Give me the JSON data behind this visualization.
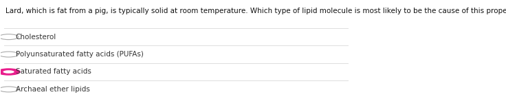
{
  "question": "Lard, which is fat from a pig, is typically solid at room temperature. Which type of lipid molecule is most likely to be the cause of this property of lard?",
  "options": [
    {
      "text": "Cholesterol",
      "selected": false
    },
    {
      "text": "Polyunsaturated fatty acids (PUFAs)",
      "selected": false
    },
    {
      "text": "Saturated fatty acids",
      "selected": true
    },
    {
      "text": "Archaeal ether lipids",
      "selected": false
    }
  ],
  "selected_color": "#e91e8c",
  "unselected_color": "#aaaaaa",
  "text_color": "#333333",
  "question_color": "#111111",
  "background_color": "#ffffff",
  "line_color": "#dddddd",
  "question_fontsize": 7.5,
  "option_fontsize": 7.5,
  "fig_width": 7.36,
  "fig_height": 1.44
}
